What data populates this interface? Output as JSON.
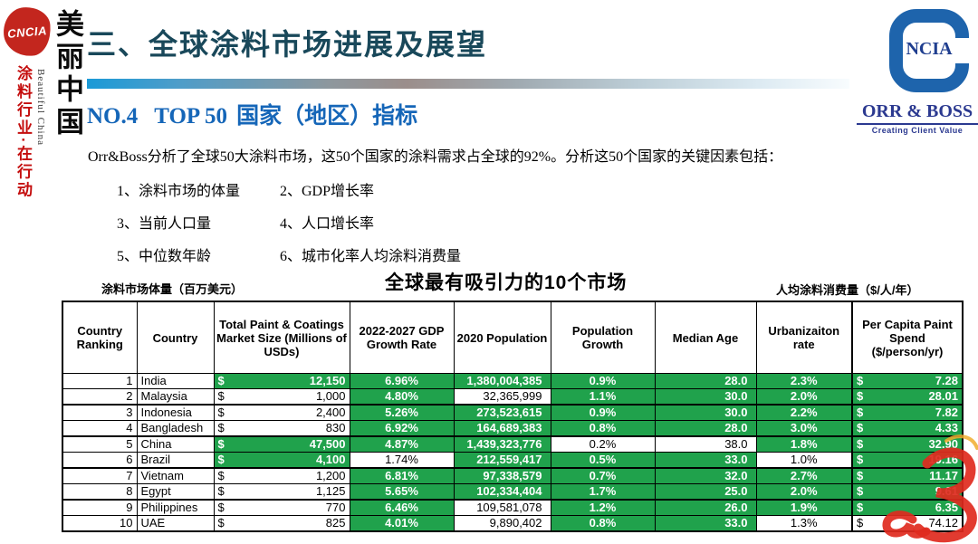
{
  "brand_left": {
    "seal_text": "CNCIA",
    "slogan_cn": "美丽中国",
    "slogan_en": "Beautiful China",
    "slogan_action": "涂料行业·在行动"
  },
  "brand_right": {
    "logo_letters": "NCIA",
    "company": "ORR & BOSS",
    "tagline": "Creating Client Value"
  },
  "header": {
    "section_title": "三、全球涂料市场进展及展望",
    "subtitle_no": "NO.4",
    "subtitle_mid": "TOP 50",
    "subtitle_rest": "国家（地区）指标"
  },
  "intro": {
    "paragraph": "Orr&Boss分析了全球50大涂料市场，这50个国家的涂料需求占全球的92%。分析这50个国家的关键因素包括：",
    "factors": [
      "1、涂料市场的体量",
      "2、GDP增长率",
      "3、当前人口量",
      "4、人口增长率",
      "5、中位数年龄",
      "6、城市化率人均涂料消费量"
    ]
  },
  "captions": {
    "left_note": "涂料市场体量（百万美元）",
    "title": "全球最有吸引力的10个市场",
    "right_note": "人均涂料消费量（$/人/年）"
  },
  "colors": {
    "highlight_green": "#20A24C",
    "section_title_teal": "#19485A",
    "subtitle_blue": "#1566B8",
    "logo_blue": "#1E64AC",
    "orr_navy": "#2B3990",
    "seal_red": "#C3261E",
    "watermark_red": "#E02A1E"
  },
  "table": {
    "headers": [
      "Country Ranking",
      "Country",
      "Total Paint & Coatings Market Size (Millions of USDs)",
      "2022-2027 GDP Growth Rate",
      "2020 Population",
      "Population Growth",
      "Median Age",
      "Urbanizaiton rate",
      "Per Capita Paint Spend ($/person/yr)"
    ],
    "currency_symbol": "$",
    "rows": [
      {
        "rank": "1",
        "country": "India",
        "market": {
          "v": "12,150",
          "hl": true
        },
        "gdp": {
          "v": "6.96%",
          "hl": true
        },
        "population": {
          "v": "1,380,004,385",
          "hl": true
        },
        "pop_growth": {
          "v": "0.9%",
          "hl": true
        },
        "median_age": {
          "v": "28.0",
          "hl": true
        },
        "urbanization": {
          "v": "2.3%",
          "hl": true
        },
        "spend": {
          "v": "7.28",
          "hl": true
        }
      },
      {
        "rank": "2",
        "country": "Malaysia",
        "market": {
          "v": "1,000",
          "hl": false
        },
        "gdp": {
          "v": "4.80%",
          "hl": true
        },
        "population": {
          "v": "32,365,999",
          "hl": false
        },
        "pop_growth": {
          "v": "1.1%",
          "hl": true
        },
        "median_age": {
          "v": "30.0",
          "hl": true
        },
        "urbanization": {
          "v": "2.0%",
          "hl": true
        },
        "spend": {
          "v": "28.01",
          "hl": true
        }
      },
      {
        "rank": "3",
        "country": "Indonesia",
        "thick_top": true,
        "market": {
          "v": "2,400",
          "hl": false
        },
        "gdp": {
          "v": "5.26%",
          "hl": true
        },
        "population": {
          "v": "273,523,615",
          "hl": true
        },
        "pop_growth": {
          "v": "0.9%",
          "hl": true
        },
        "median_age": {
          "v": "30.0",
          "hl": true
        },
        "urbanization": {
          "v": "2.2%",
          "hl": true
        },
        "spend": {
          "v": "7.82",
          "hl": true
        }
      },
      {
        "rank": "4",
        "country": "Bangladesh",
        "market": {
          "v": "830",
          "hl": false
        },
        "gdp": {
          "v": "6.92%",
          "hl": true
        },
        "population": {
          "v": "164,689,383",
          "hl": true
        },
        "pop_growth": {
          "v": "0.8%",
          "hl": true
        },
        "median_age": {
          "v": "28.0",
          "hl": true
        },
        "urbanization": {
          "v": "3.0%",
          "hl": true
        },
        "spend": {
          "v": "4.33",
          "hl": true
        }
      },
      {
        "rank": "5",
        "country": "China",
        "thick_top": true,
        "market": {
          "v": "47,500",
          "hl": true
        },
        "gdp": {
          "v": "4.87%",
          "hl": true
        },
        "population": {
          "v": "1,439,323,776",
          "hl": true
        },
        "pop_growth": {
          "v": "0.2%",
          "hl": false
        },
        "median_age": {
          "v": "38.0",
          "hl": false
        },
        "urbanization": {
          "v": "1.8%",
          "hl": true
        },
        "spend": {
          "v": "32.90",
          "hl": true
        }
      },
      {
        "rank": "6",
        "country": "Brazil",
        "market": {
          "v": "4,100",
          "hl": true
        },
        "gdp": {
          "v": "1.74%",
          "hl": false
        },
        "population": {
          "v": "212,559,417",
          "hl": true
        },
        "pop_growth": {
          "v": "0.5%",
          "hl": true
        },
        "median_age": {
          "v": "33.0",
          "hl": true
        },
        "urbanization": {
          "v": "1.0%",
          "hl": false
        },
        "spend": {
          "v": "19.16",
          "hl": true
        }
      },
      {
        "rank": "7",
        "country": "Vietnam",
        "thick_top": true,
        "market": {
          "v": "1,200",
          "hl": false
        },
        "gdp": {
          "v": "6.81%",
          "hl": true
        },
        "population": {
          "v": "97,338,579",
          "hl": true
        },
        "pop_growth": {
          "v": "0.7%",
          "hl": true
        },
        "median_age": {
          "v": "32.0",
          "hl": true
        },
        "urbanization": {
          "v": "2.7%",
          "hl": true
        },
        "spend": {
          "v": "11.17",
          "hl": true
        }
      },
      {
        "rank": "8",
        "country": "Egypt",
        "market": {
          "v": "1,125",
          "hl": false
        },
        "gdp": {
          "v": "5.65%",
          "hl": true
        },
        "population": {
          "v": "102,334,404",
          "hl": true
        },
        "pop_growth": {
          "v": "1.7%",
          "hl": true
        },
        "median_age": {
          "v": "25.0",
          "hl": true
        },
        "urbanization": {
          "v": "2.0%",
          "hl": true
        },
        "spend": {
          "v": "9.61",
          "hl": true
        }
      },
      {
        "rank": "9",
        "country": "Philippines",
        "thick_top": true,
        "market": {
          "v": "770",
          "hl": false
        },
        "gdp": {
          "v": "6.46%",
          "hl": true
        },
        "population": {
          "v": "109,581,078",
          "hl": false
        },
        "pop_growth": {
          "v": "1.2%",
          "hl": true
        },
        "median_age": {
          "v": "26.0",
          "hl": true
        },
        "urbanization": {
          "v": "1.9%",
          "hl": true
        },
        "spend": {
          "v": "6.35",
          "hl": true
        }
      },
      {
        "rank": "10",
        "country": "UAE",
        "market": {
          "v": "825",
          "hl": false
        },
        "gdp": {
          "v": "4.01%",
          "hl": true
        },
        "population": {
          "v": "9,890,402",
          "hl": false
        },
        "pop_growth": {
          "v": "0.8%",
          "hl": true
        },
        "median_age": {
          "v": "33.0",
          "hl": true
        },
        "urbanization": {
          "v": "1.3%",
          "hl": false
        },
        "spend": {
          "v": "74.12",
          "hl": false
        }
      }
    ]
  }
}
